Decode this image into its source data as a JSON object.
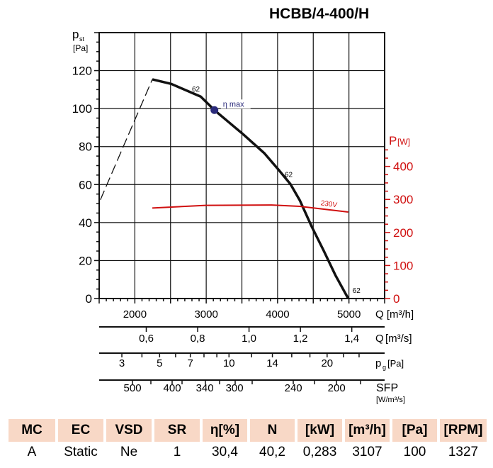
{
  "chart_data": {
    "type": "line",
    "title": "HCBB/4-400/H",
    "xlabel": "Q [m³/h]",
    "ylabel_main": "p",
    "ylabel_sub": "st",
    "ylabel_unit": "[Pa]",
    "y2label": "P",
    "y2label_unit": "[W]",
    "xlim": [
      1500,
      5500
    ],
    "ylim": [
      0,
      140
    ],
    "y2lim": [
      0,
      805
    ],
    "grid": true,
    "x_ticks": [
      2000,
      3000,
      4000,
      5000
    ],
    "y_ticks": [
      0,
      20,
      40,
      60,
      80,
      100,
      120
    ],
    "y2_ticks": [
      0,
      100,
      200,
      300,
      400
    ],
    "series": [
      {
        "name": "62",
        "style": "solid",
        "color": "#111111",
        "x": [
          2245,
          2510,
          2923,
          3115,
          3520,
          3817,
          4016,
          4181,
          4314,
          4479,
          4645,
          4810,
          4990
        ],
        "y": [
          115.4,
          113,
          106.3,
          99.2,
          86.4,
          76.4,
          67.7,
          60.2,
          51.5,
          37.8,
          25.3,
          12.3,
          0
        ]
      },
      {
        "style": "dashed",
        "color": "#111111",
        "x": [
          1517,
          2245
        ],
        "y": [
          52,
          115.4
        ]
      },
      {
        "name": "230V",
        "axis": "y2",
        "color": "#d01010",
        "x": [
          2245,
          2990,
          3917,
          4310,
          4990
        ],
        "y": [
          274,
          282,
          283,
          279,
          262
        ]
      }
    ],
    "curve_labels": [
      {
        "text": "62",
        "x": 2800,
        "y": 109
      },
      {
        "text": "62",
        "x": 4100,
        "y": 64
      },
      {
        "text": "62",
        "x": 5050,
        "y": 3
      }
    ],
    "eta_max": {
      "label": "η max",
      "x": 3115,
      "y": 99.2,
      "color": "#2a2a7a"
    },
    "secondary_scales": [
      {
        "unit_main": "Q",
        "unit": "[m³/s]",
        "ticks": [
          {
            "label": "0,6",
            "value": 0.6
          },
          {
            "label": "0,8",
            "value": 0.8
          },
          {
            "label": "1,0",
            "value": 1.0
          },
          {
            "label": "1,2",
            "value": 1.2
          },
          {
            "label": "1,4",
            "value": 1.4
          }
        ]
      },
      {
        "unit_main": "p",
        "unit_sub": "g",
        "unit": "[Pa]",
        "ticks": [
          {
            "label": "3",
            "value": 3
          },
          {
            "label": "5",
            "value": 5
          },
          {
            "label": "7",
            "value": 7
          },
          {
            "label": "10",
            "value": 10
          },
          {
            "label": "14",
            "value": 14
          },
          {
            "label": "20",
            "value": 20
          }
        ]
      },
      {
        "unit_main": "SFP",
        "unit": "[W/m³/s]",
        "ticks": [
          {
            "label": "500",
            "q": 1967
          },
          {
            "label": "400",
            "q": 2523
          },
          {
            "label": "340",
            "q": 2980
          },
          {
            "label": "300",
            "q": 3397
          },
          {
            "label": "240",
            "q": 4221
          },
          {
            "label": "200",
            "q": 4827
          }
        ]
      }
    ]
  },
  "table": {
    "headers": [
      "MC",
      "EC",
      "VSD",
      "SR",
      "η[%]",
      "N",
      "[kW]",
      "[m³/h]",
      "[Pa]",
      "[RPM]"
    ],
    "values": [
      "A",
      "Static",
      "Ne",
      "1",
      "30,4",
      "40,2",
      "0,283",
      "3107",
      "100",
      "1327"
    ]
  }
}
